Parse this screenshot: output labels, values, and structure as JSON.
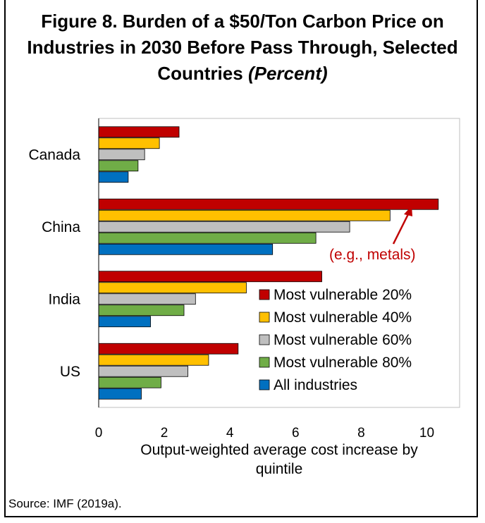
{
  "title": {
    "main": "Figure 8. Burden of a $50/Ton Carbon Price on Industries in 2030 Before Pass Through, Selected Countries",
    "unit": "(Percent)"
  },
  "source": "Source: IMF (2019a).",
  "chart_data": {
    "type": "bar",
    "orientation": "horizontal",
    "categories": [
      "Canada",
      "China",
      "India",
      "US"
    ],
    "series": [
      {
        "name": "Most vulnerable 20%",
        "color": "#c00000",
        "values": [
          2.45,
          10.35,
          6.8,
          4.25
        ]
      },
      {
        "name": "Most vulnerable 40%",
        "color": "#ffc000",
        "values": [
          1.85,
          8.88,
          4.5,
          3.35
        ]
      },
      {
        "name": "Most vulnerable 60%",
        "color": "#bfbfbf",
        "values": [
          1.4,
          7.65,
          2.95,
          2.72
        ]
      },
      {
        "name": "Most vulnerable 80%",
        "color": "#70ad47",
        "values": [
          1.2,
          6.62,
          2.6,
          1.9
        ]
      },
      {
        "name": "All industries",
        "color": "#0070c0",
        "values": [
          0.9,
          5.3,
          1.58,
          1.3
        ]
      }
    ],
    "xlabel": "Output-weighted average cost increase by quintile",
    "xlim": [
      0,
      11
    ],
    "xticks": [
      0,
      2,
      4,
      6,
      8,
      10
    ],
    "grid": false,
    "legend_position": "bottom-right",
    "annotation": {
      "text": "(e.g., metals)",
      "color": "#c00000"
    }
  }
}
